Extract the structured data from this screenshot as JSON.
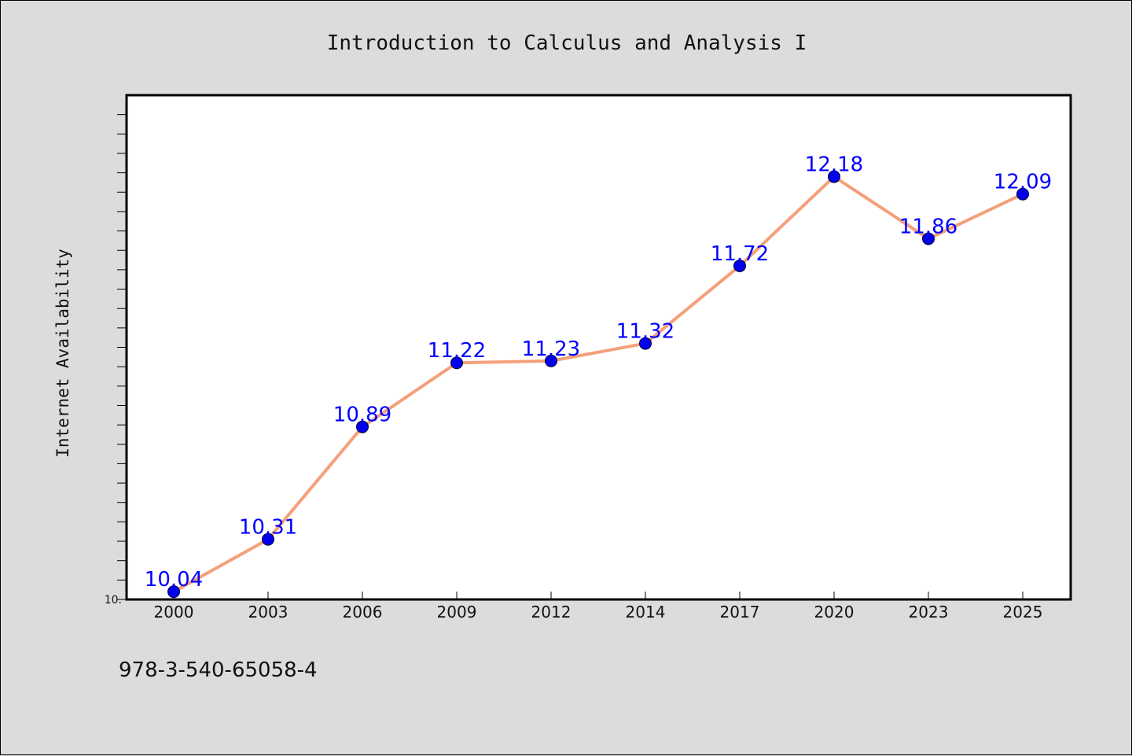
{
  "isbn_text": "978-3-540-65058-4",
  "chart_data": {
    "type": "line",
    "title": "Introduction to Calculus and Analysis I",
    "xlabel": "",
    "ylabel": "Internet Availability",
    "categories": [
      "2000",
      "2003",
      "2006",
      "2009",
      "2012",
      "2014",
      "2017",
      "2020",
      "2023",
      "2025"
    ],
    "series": [
      {
        "values": [
          10.04,
          10.31,
          10.89,
          11.22,
          11.23,
          11.32,
          11.72,
          12.18,
          11.86,
          12.09
        ],
        "labels": [
          "10.04",
          "10.31",
          "10.89",
          "11.22",
          "11.23",
          "11.32",
          "11.72",
          "12.18",
          "11.86",
          "12.09"
        ],
        "line_color": "#f4a07a",
        "marker_color": "#0000ee",
        "label_color": "#0000ff"
      }
    ],
    "ylim": [
      10.0,
      12.6
    ],
    "y_tick_labels": [
      {
        "value": 10.0,
        "label": "10."
      }
    ],
    "y_minor_step": 0.1,
    "grid": false,
    "legend": "none"
  }
}
